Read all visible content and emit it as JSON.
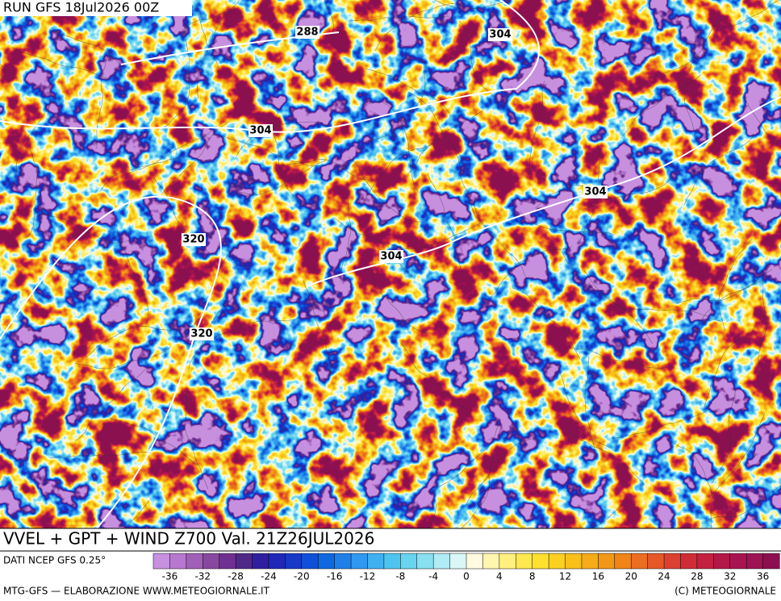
{
  "header": {
    "run": "RUN GFS 18Jul2026 00Z"
  },
  "map": {
    "contour_labels": [
      "288",
      "304",
      "304",
      "304",
      "320",
      "304",
      "320"
    ]
  },
  "caption": "VVEL + GPT + WIND Z700 Val. 21Z26JUL2026",
  "legend": {
    "source": "DATI NCEP GFS 0.25°",
    "colors": [
      "#c890e0",
      "#b878d0",
      "#a060b8",
      "#8848a0",
      "#703090",
      "#502888",
      "#3020a0",
      "#2028b8",
      "#1838c8",
      "#1050d8",
      "#1068e0",
      "#2080e8",
      "#3098f0",
      "#40b0f0",
      "#50c4f0",
      "#68d4f0",
      "#88e0f0",
      "#b0ecf4",
      "#d8f8f8",
      "#fffae0",
      "#fff6b0",
      "#fff080",
      "#ffe850",
      "#fee030",
      "#fcd020",
      "#f8c018",
      "#f5ac18",
      "#f29818",
      "#f08418",
      "#ec6e20",
      "#e65828",
      "#dc4030",
      "#d02c38",
      "#c42040",
      "#b41848",
      "#a81450",
      "#9c1454",
      "#8c1050"
    ],
    "ticks": [
      -36,
      -32,
      -28,
      -24,
      -20,
      -16,
      -12,
      -8,
      -4,
      0,
      4,
      8,
      12,
      16,
      20,
      24,
      28,
      32,
      36
    ]
  },
  "footer": {
    "left": "MTG-GFS — ELABORAZIONE WWW.METEOGIORNALE.IT",
    "right": "(C) METEOGIORNALE"
  }
}
